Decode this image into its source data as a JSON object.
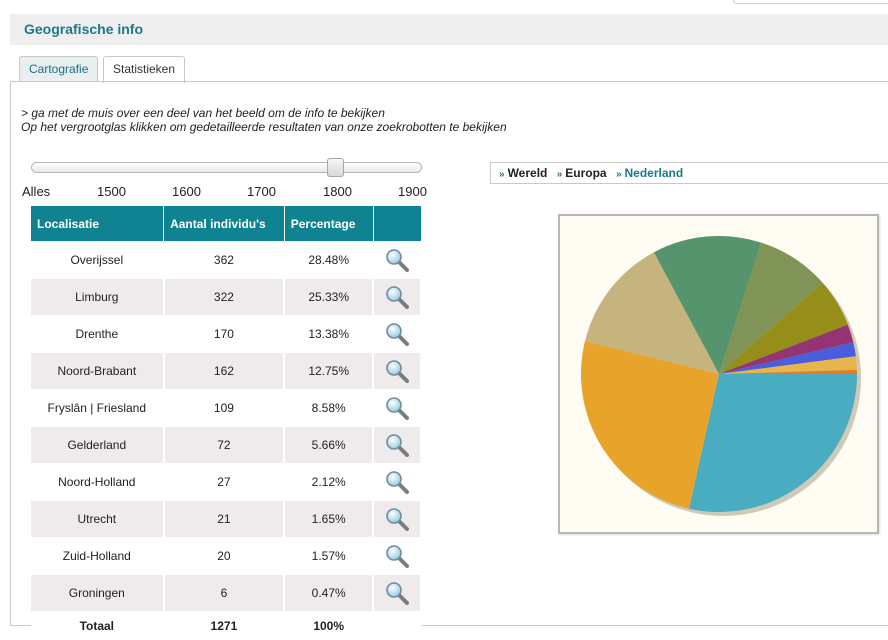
{
  "header": {
    "title": "Geografische info"
  },
  "tabs": [
    {
      "label": "Cartografie",
      "active": false
    },
    {
      "label": "Statistieken",
      "active": true
    }
  ],
  "info": {
    "line1": "> ga met de muis over een deel van het beeld om de info te bekijken",
    "line2": "Op het vergrootglas klikken om gedetailleerde resultaten van onze zoekrobotten te bekijken"
  },
  "slider": {
    "labels": [
      "Alles",
      "1500",
      "1600",
      "1700",
      "1800",
      "1900"
    ],
    "position_fraction": 0.8
  },
  "table": {
    "headers": [
      "Localisatie",
      "Aantal individu's",
      "Percentage",
      ""
    ],
    "rows": [
      {
        "place": "Overijssel",
        "count": "362",
        "pct": "28.48%"
      },
      {
        "place": "Limburg",
        "count": "322",
        "pct": "25.33%"
      },
      {
        "place": "Drenthe",
        "count": "170",
        "pct": "13.38%"
      },
      {
        "place": "Noord-Brabant",
        "count": "162",
        "pct": "12.75%"
      },
      {
        "place": "Fryslân | Friesland",
        "count": "109",
        "pct": "8.58%"
      },
      {
        "place": "Gelderland",
        "count": "72",
        "pct": "5.66%"
      },
      {
        "place": "Noord-Holland",
        "count": "27",
        "pct": "2.12%"
      },
      {
        "place": "Utrecht",
        "count": "21",
        "pct": "1.65%"
      },
      {
        "place": "Zuid-Holland",
        "count": "20",
        "pct": "1.57%"
      },
      {
        "place": "Groningen",
        "count": "6",
        "pct": "0.47%"
      }
    ],
    "total": {
      "label": "Totaal",
      "count": "1271",
      "pct": "100%"
    },
    "row_icon": "magnifier-icon"
  },
  "breadcrumb": [
    {
      "label": "Wereld",
      "current": false
    },
    {
      "label": "Europa",
      "current": false
    },
    {
      "label": "Nederland",
      "current": true
    }
  ],
  "colors": {
    "accent": "#0f8391",
    "title": "#1b7a8a"
  },
  "chart_data": {
    "type": "pie",
    "categories": [
      "Overijssel",
      "Limburg",
      "Drenthe",
      "Noord-Brabant",
      "Fryslân | Friesland",
      "Gelderland",
      "Noord-Holland",
      "Utrecht",
      "Zuid-Holland",
      "Groningen"
    ],
    "values": [
      362,
      322,
      170,
      162,
      109,
      72,
      27,
      21,
      20,
      6
    ],
    "colors": [
      "#4aacc1",
      "#e8a32b",
      "#c6b47e",
      "#55946d",
      "#7f9456",
      "#958f1a",
      "#953472",
      "#4a5edb",
      "#e7b54b",
      "#e97b1e"
    ]
  }
}
